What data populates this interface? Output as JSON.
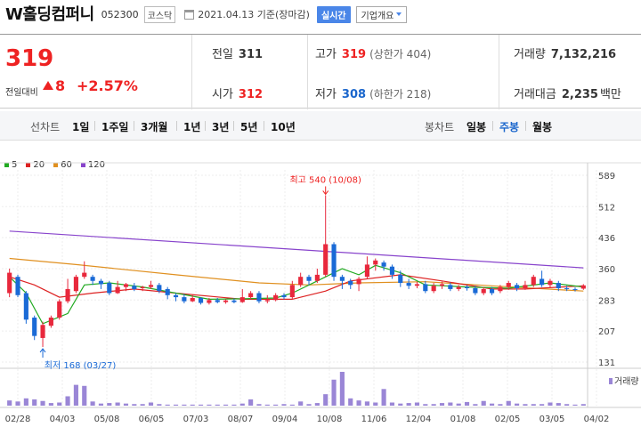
{
  "header": {
    "company_name": "W홀딩컴퍼니",
    "stock_code": "052300",
    "market": "코스닥",
    "date": "2021.04.13 기준(장마감)",
    "realtime_label": "실시간",
    "company_info_label": "기업개요"
  },
  "summary": {
    "price": "319",
    "change_label": "전일대비",
    "change_value": "8",
    "change_pct": "+2.57%",
    "prev_close_label": "전일",
    "prev_close": "311",
    "open_label": "시가",
    "open": "312",
    "high_label": "고가",
    "high": "319",
    "upper_limit": "(상한가 404)",
    "low_label": "저가",
    "low": "308",
    "lower_limit": "(하한가 218)",
    "volume_label": "거래량",
    "volume": "7,132,216",
    "amount_label": "거래대금",
    "amount": "2,235",
    "amount_unit": "백만"
  },
  "controls": {
    "line_chart": "선차트",
    "periods": [
      "1일",
      "1주일",
      "3개월",
      "1년",
      "3년",
      "5년",
      "10년"
    ],
    "candle_chart": "봉차트",
    "candle_periods": [
      "일봉",
      "주봉",
      "월봉"
    ],
    "active_candle": "주봉"
  },
  "legend": [
    {
      "label": "5",
      "color": "#22aa22"
    },
    {
      "label": "20",
      "color": "#dd2222"
    },
    {
      "label": "60",
      "color": "#e09020"
    },
    {
      "label": "120",
      "color": "#8844cc"
    }
  ],
  "chart_data": {
    "type": "candlestick",
    "interval": "weekly",
    "y_ticks": [
      589,
      512,
      436,
      360,
      283,
      207,
      131
    ],
    "x_ticks": [
      "02/28",
      "04/03",
      "05/08",
      "06/05",
      "07/03",
      "08/07",
      "09/04",
      "10/08",
      "11/06",
      "12/04",
      "01/08",
      "02/05",
      "03/05",
      "04/02"
    ],
    "annotations": {
      "max": "최고 540 (10/08)",
      "min": "최저 168 (03/27)"
    },
    "volume_label": "거래량",
    "candles": [
      {
        "o": 300,
        "c": 350,
        "h": 360,
        "l": 290
      },
      {
        "o": 340,
        "c": 295,
        "h": 345,
        "l": 290
      },
      {
        "o": 300,
        "c": 235,
        "h": 305,
        "l": 225
      },
      {
        "o": 240,
        "c": 195,
        "h": 245,
        "l": 185
      },
      {
        "o": 190,
        "c": 222,
        "h": 230,
        "l": 168
      },
      {
        "o": 220,
        "c": 240,
        "h": 245,
        "l": 215
      },
      {
        "o": 240,
        "c": 280,
        "h": 285,
        "l": 235
      },
      {
        "o": 280,
        "c": 310,
        "h": 335,
        "l": 275
      },
      {
        "o": 305,
        "c": 340,
        "h": 345,
        "l": 300
      },
      {
        "o": 340,
        "c": 350,
        "h": 378,
        "l": 335
      },
      {
        "o": 340,
        "c": 330,
        "h": 345,
        "l": 320
      },
      {
        "o": 330,
        "c": 322,
        "h": 335,
        "l": 310
      },
      {
        "o": 325,
        "c": 300,
        "h": 330,
        "l": 295
      },
      {
        "o": 300,
        "c": 315,
        "h": 330,
        "l": 298
      },
      {
        "o": 315,
        "c": 322,
        "h": 325,
        "l": 305
      },
      {
        "o": 318,
        "c": 310,
        "h": 325,
        "l": 305
      },
      {
        "o": 312,
        "c": 315,
        "h": 318,
        "l": 305
      },
      {
        "o": 315,
        "c": 320,
        "h": 330,
        "l": 310
      },
      {
        "o": 320,
        "c": 305,
        "h": 325,
        "l": 300
      },
      {
        "o": 310,
        "c": 295,
        "h": 315,
        "l": 285
      },
      {
        "o": 295,
        "c": 290,
        "h": 300,
        "l": 280
      },
      {
        "o": 290,
        "c": 280,
        "h": 298,
        "l": 275
      },
      {
        "o": 280,
        "c": 288,
        "h": 295,
        "l": 278
      },
      {
        "o": 288,
        "c": 276,
        "h": 290,
        "l": 272
      },
      {
        "o": 276,
        "c": 283,
        "h": 288,
        "l": 272
      },
      {
        "o": 283,
        "c": 278,
        "h": 288,
        "l": 275
      },
      {
        "o": 278,
        "c": 282,
        "h": 285,
        "l": 274
      },
      {
        "o": 282,
        "c": 278,
        "h": 287,
        "l": 275
      },
      {
        "o": 278,
        "c": 290,
        "h": 310,
        "l": 276
      },
      {
        "o": 290,
        "c": 300,
        "h": 305,
        "l": 286
      },
      {
        "o": 300,
        "c": 280,
        "h": 305,
        "l": 275
      },
      {
        "o": 280,
        "c": 283,
        "h": 295,
        "l": 275
      },
      {
        "o": 283,
        "c": 295,
        "h": 300,
        "l": 280
      },
      {
        "o": 295,
        "c": 290,
        "h": 300,
        "l": 285
      },
      {
        "o": 290,
        "c": 320,
        "h": 330,
        "l": 285
      },
      {
        "o": 320,
        "c": 340,
        "h": 350,
        "l": 315
      },
      {
        "o": 340,
        "c": 330,
        "h": 345,
        "l": 320
      },
      {
        "o": 330,
        "c": 345,
        "h": 360,
        "l": 325
      },
      {
        "o": 345,
        "c": 420,
        "h": 540,
        "l": 340
      },
      {
        "o": 420,
        "c": 340,
        "h": 425,
        "l": 330
      },
      {
        "o": 340,
        "c": 330,
        "h": 345,
        "l": 310
      },
      {
        "o": 330,
        "c": 320,
        "h": 335,
        "l": 310
      },
      {
        "o": 322,
        "c": 335,
        "h": 340,
        "l": 305
      },
      {
        "o": 340,
        "c": 370,
        "h": 390,
        "l": 335
      },
      {
        "o": 370,
        "c": 380,
        "h": 385,
        "l": 355
      },
      {
        "o": 375,
        "c": 365,
        "h": 380,
        "l": 355
      },
      {
        "o": 365,
        "c": 345,
        "h": 370,
        "l": 335
      },
      {
        "o": 345,
        "c": 325,
        "h": 355,
        "l": 315
      },
      {
        "o": 325,
        "c": 318,
        "h": 335,
        "l": 310
      },
      {
        "o": 318,
        "c": 322,
        "h": 328,
        "l": 312
      },
      {
        "o": 322,
        "c": 305,
        "h": 330,
        "l": 300
      },
      {
        "o": 305,
        "c": 318,
        "h": 325,
        "l": 300
      },
      {
        "o": 318,
        "c": 322,
        "h": 328,
        "l": 310
      },
      {
        "o": 320,
        "c": 310,
        "h": 326,
        "l": 305
      },
      {
        "o": 310,
        "c": 315,
        "h": 320,
        "l": 305
      },
      {
        "o": 315,
        "c": 312,
        "h": 320,
        "l": 306
      },
      {
        "o": 312,
        "c": 300,
        "h": 318,
        "l": 295
      },
      {
        "o": 300,
        "c": 310,
        "h": 315,
        "l": 295
      },
      {
        "o": 310,
        "c": 300,
        "h": 315,
        "l": 295
      },
      {
        "o": 305,
        "c": 315,
        "h": 320,
        "l": 300
      },
      {
        "o": 315,
        "c": 325,
        "h": 330,
        "l": 308
      },
      {
        "o": 320,
        "c": 312,
        "h": 325,
        "l": 305
      },
      {
        "o": 312,
        "c": 320,
        "h": 330,
        "l": 308
      },
      {
        "o": 320,
        "c": 340,
        "h": 345,
        "l": 315
      },
      {
        "o": 335,
        "c": 320,
        "h": 355,
        "l": 315
      },
      {
        "o": 320,
        "c": 330,
        "h": 335,
        "l": 312
      },
      {
        "o": 325,
        "c": 312,
        "h": 330,
        "l": 305
      },
      {
        "o": 312,
        "c": 310,
        "h": 318,
        "l": 305
      },
      {
        "o": 310,
        "c": 308,
        "h": 314,
        "l": 304
      },
      {
        "o": 311,
        "c": 319,
        "h": 322,
        "l": 308
      }
    ],
    "volume": [
      10,
      8,
      14,
      12,
      9,
      5,
      6,
      18,
      40,
      38,
      8,
      4,
      5,
      6,
      4,
      3,
      3,
      6,
      3,
      2,
      2,
      2,
      2,
      2,
      2,
      2,
      2,
      2,
      4,
      12,
      3,
      2,
      2,
      3,
      2,
      8,
      3,
      5,
      22,
      50,
      65,
      14,
      10,
      8,
      6,
      32,
      6,
      4,
      5,
      6,
      3,
      3,
      5,
      6,
      4,
      7,
      3,
      9,
      4,
      3,
      9,
      4,
      3,
      3,
      3,
      6,
      5,
      3,
      2,
      3
    ],
    "ma120": [
      [
        0,
        452
      ],
      [
        69,
        362
      ]
    ],
    "ma60": [
      [
        0,
        385
      ],
      [
        8,
        370
      ],
      [
        20,
        345
      ],
      [
        30,
        325
      ],
      [
        36,
        320
      ],
      [
        42,
        325
      ],
      [
        50,
        328
      ],
      [
        58,
        318
      ],
      [
        69,
        305
      ]
    ],
    "ma20": [
      [
        0,
        340
      ],
      [
        3,
        320
      ],
      [
        6,
        290
      ],
      [
        10,
        300
      ],
      [
        15,
        310
      ],
      [
        20,
        300
      ],
      [
        28,
        285
      ],
      [
        34,
        285
      ],
      [
        38,
        305
      ],
      [
        41,
        330
      ],
      [
        47,
        345
      ],
      [
        52,
        330
      ],
      [
        58,
        310
      ],
      [
        62,
        310
      ],
      [
        69,
        318
      ]
    ],
    "ma5": [
      [
        0,
        340
      ],
      [
        2,
        300
      ],
      [
        4,
        225
      ],
      [
        7,
        250
      ],
      [
        9,
        320
      ],
      [
        12,
        325
      ],
      [
        16,
        315
      ],
      [
        20,
        300
      ],
      [
        24,
        285
      ],
      [
        28,
        286
      ],
      [
        32,
        288
      ],
      [
        34,
        300
      ],
      [
        37,
        330
      ],
      [
        40,
        360
      ],
      [
        42,
        345
      ],
      [
        44,
        368
      ],
      [
        47,
        350
      ],
      [
        50,
        320
      ],
      [
        55,
        315
      ],
      [
        60,
        312
      ],
      [
        65,
        325
      ],
      [
        69,
        315
      ]
    ]
  }
}
